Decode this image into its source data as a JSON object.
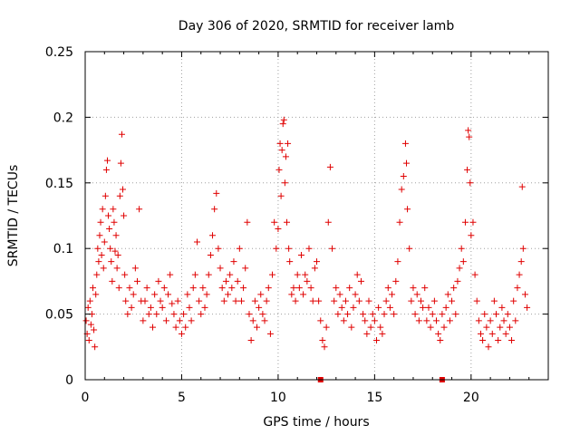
{
  "chart_data": {
    "type": "scatter",
    "title": "Day 306 of 2020, SRMTID for receiver lamb",
    "xlabel": "GPS time / hours",
    "ylabel": "SRMTID / TECUs",
    "xlim": [
      0,
      24
    ],
    "ylim": [
      0,
      0.25
    ],
    "x_ticks": [
      0,
      5,
      10,
      15,
      20
    ],
    "x_tick_labels": [
      "0",
      "5",
      "10",
      "15",
      "20"
    ],
    "y_ticks": [
      0,
      0.05,
      0.1,
      0.15,
      0.2,
      0.25
    ],
    "y_tick_labels": [
      "0",
      "0.05",
      "0.1",
      "0.15",
      "0.2",
      "0.25"
    ],
    "grid": true,
    "marker": "+",
    "color": "#e00000",
    "series": [
      {
        "name": "SRMTID",
        "points": [
          [
            0.05,
            0.045
          ],
          [
            0.1,
            0.035
          ],
          [
            0.15,
            0.055
          ],
          [
            0.2,
            0.03
          ],
          [
            0.25,
            0.06
          ],
          [
            0.3,
            0.042
          ],
          [
            0.35,
            0.05
          ],
          [
            0.4,
            0.07
          ],
          [
            0.45,
            0.038
          ],
          [
            0.5,
            0.025
          ],
          [
            0.55,
            0.065
          ],
          [
            0.6,
            0.08
          ],
          [
            0.65,
            0.1
          ],
          [
            0.7,
            0.09
          ],
          [
            0.75,
            0.11
          ],
          [
            0.8,
            0.12
          ],
          [
            0.85,
            0.095
          ],
          [
            0.9,
            0.13
          ],
          [
            0.95,
            0.085
          ],
          [
            1.0,
            0.105
          ],
          [
            1.05,
            0.14
          ],
          [
            1.1,
            0.16
          ],
          [
            1.15,
            0.167
          ],
          [
            1.2,
            0.125
          ],
          [
            1.25,
            0.115
          ],
          [
            1.3,
            0.1
          ],
          [
            1.35,
            0.09
          ],
          [
            1.4,
            0.075
          ],
          [
            1.45,
            0.13
          ],
          [
            1.5,
            0.12
          ],
          [
            1.55,
            0.098
          ],
          [
            1.6,
            0.11
          ],
          [
            1.65,
            0.085
          ],
          [
            1.7,
            0.095
          ],
          [
            1.75,
            0.07
          ],
          [
            1.8,
            0.14
          ],
          [
            1.85,
            0.165
          ],
          [
            1.9,
            0.187
          ],
          [
            1.95,
            0.145
          ],
          [
            2.0,
            0.125
          ],
          [
            2.05,
            0.08
          ],
          [
            2.1,
            0.06
          ],
          [
            2.2,
            0.05
          ],
          [
            2.3,
            0.07
          ],
          [
            2.4,
            0.055
          ],
          [
            2.5,
            0.065
          ],
          [
            2.6,
            0.085
          ],
          [
            2.7,
            0.075
          ],
          [
            2.8,
            0.13
          ],
          [
            2.9,
            0.06
          ],
          [
            3.0,
            0.045
          ],
          [
            3.1,
            0.06
          ],
          [
            3.2,
            0.07
          ],
          [
            3.3,
            0.05
          ],
          [
            3.4,
            0.055
          ],
          [
            3.5,
            0.04
          ],
          [
            3.6,
            0.065
          ],
          [
            3.7,
            0.05
          ],
          [
            3.8,
            0.075
          ],
          [
            3.9,
            0.06
          ],
          [
            4.0,
            0.055
          ],
          [
            4.1,
            0.07
          ],
          [
            4.2,
            0.045
          ],
          [
            4.3,
            0.065
          ],
          [
            4.4,
            0.08
          ],
          [
            4.5,
            0.058
          ],
          [
            4.6,
            0.05
          ],
          [
            4.7,
            0.04
          ],
          [
            4.8,
            0.06
          ],
          [
            4.9,
            0.045
          ],
          [
            5.0,
            0.035
          ],
          [
            5.1,
            0.05
          ],
          [
            5.2,
            0.04
          ],
          [
            5.3,
            0.065
          ],
          [
            5.4,
            0.055
          ],
          [
            5.5,
            0.045
          ],
          [
            5.6,
            0.07
          ],
          [
            5.7,
            0.08
          ],
          [
            5.8,
            0.105
          ],
          [
            5.9,
            0.06
          ],
          [
            6.0,
            0.05
          ],
          [
            6.1,
            0.07
          ],
          [
            6.2,
            0.055
          ],
          [
            6.3,
            0.065
          ],
          [
            6.4,
            0.08
          ],
          [
            6.5,
            0.095
          ],
          [
            6.6,
            0.11
          ],
          [
            6.7,
            0.13
          ],
          [
            6.8,
            0.142
          ],
          [
            6.9,
            0.1
          ],
          [
            7.0,
            0.085
          ],
          [
            7.1,
            0.07
          ],
          [
            7.2,
            0.06
          ],
          [
            7.3,
            0.075
          ],
          [
            7.4,
            0.065
          ],
          [
            7.5,
            0.08
          ],
          [
            7.6,
            0.07
          ],
          [
            7.7,
            0.09
          ],
          [
            7.8,
            0.06
          ],
          [
            7.9,
            0.075
          ],
          [
            8.0,
            0.1
          ],
          [
            8.1,
            0.06
          ],
          [
            8.2,
            0.07
          ],
          [
            8.3,
            0.085
          ],
          [
            8.4,
            0.12
          ],
          [
            8.5,
            0.05
          ],
          [
            8.6,
            0.03
          ],
          [
            8.7,
            0.045
          ],
          [
            8.8,
            0.06
          ],
          [
            8.9,
            0.04
          ],
          [
            9.0,
            0.055
          ],
          [
            9.1,
            0.065
          ],
          [
            9.2,
            0.05
          ],
          [
            9.3,
            0.045
          ],
          [
            9.4,
            0.06
          ],
          [
            9.5,
            0.07
          ],
          [
            9.6,
            0.035
          ],
          [
            9.7,
            0.08
          ],
          [
            9.8,
            0.12
          ],
          [
            9.9,
            0.1
          ],
          [
            10.0,
            0.115
          ],
          [
            10.05,
            0.16
          ],
          [
            10.1,
            0.18
          ],
          [
            10.15,
            0.14
          ],
          [
            10.2,
            0.175
          ],
          [
            10.25,
            0.195
          ],
          [
            10.3,
            0.198
          ],
          [
            10.35,
            0.15
          ],
          [
            10.4,
            0.17
          ],
          [
            10.45,
            0.12
          ],
          [
            10.5,
            0.18
          ],
          [
            10.55,
            0.1
          ],
          [
            10.6,
            0.09
          ],
          [
            10.7,
            0.065
          ],
          [
            10.8,
            0.07
          ],
          [
            10.9,
            0.06
          ],
          [
            11.0,
            0.08
          ],
          [
            11.1,
            0.07
          ],
          [
            11.2,
            0.095
          ],
          [
            11.3,
            0.065
          ],
          [
            11.4,
            0.08
          ],
          [
            11.5,
            0.075
          ],
          [
            11.6,
            0.1
          ],
          [
            11.7,
            0.07
          ],
          [
            11.8,
            0.06
          ],
          [
            11.9,
            0.085
          ],
          [
            12.0,
            0.09
          ],
          [
            12.1,
            0.06
          ],
          [
            12.2,
            0.045
          ],
          [
            12.3,
            0.03
          ],
          [
            12.4,
            0.025
          ],
          [
            12.5,
            0.04
          ],
          [
            12.6,
            0.12
          ],
          [
            12.7,
            0.162
          ],
          [
            12.8,
            0.1
          ],
          [
            12.9,
            0.06
          ],
          [
            13.0,
            0.07
          ],
          [
            13.1,
            0.05
          ],
          [
            13.2,
            0.065
          ],
          [
            13.3,
            0.055
          ],
          [
            13.4,
            0.045
          ],
          [
            13.5,
            0.06
          ],
          [
            13.6,
            0.05
          ],
          [
            13.7,
            0.07
          ],
          [
            13.8,
            0.04
          ],
          [
            13.9,
            0.055
          ],
          [
            14.0,
            0.065
          ],
          [
            14.1,
            0.08
          ],
          [
            14.2,
            0.06
          ],
          [
            14.3,
            0.075
          ],
          [
            14.4,
            0.05
          ],
          [
            14.5,
            0.045
          ],
          [
            14.6,
            0.035
          ],
          [
            14.7,
            0.06
          ],
          [
            14.8,
            0.04
          ],
          [
            14.9,
            0.05
          ],
          [
            15.0,
            0.045
          ],
          [
            15.1,
            0.03
          ],
          [
            15.2,
            0.055
          ],
          [
            15.3,
            0.04
          ],
          [
            15.4,
            0.035
          ],
          [
            15.5,
            0.05
          ],
          [
            15.6,
            0.06
          ],
          [
            15.7,
            0.07
          ],
          [
            15.8,
            0.055
          ],
          [
            15.9,
            0.065
          ],
          [
            16.0,
            0.05
          ],
          [
            16.1,
            0.075
          ],
          [
            16.2,
            0.09
          ],
          [
            16.3,
            0.12
          ],
          [
            16.4,
            0.145
          ],
          [
            16.5,
            0.155
          ],
          [
            16.6,
            0.18
          ],
          [
            16.65,
            0.165
          ],
          [
            16.7,
            0.13
          ],
          [
            16.8,
            0.1
          ],
          [
            16.9,
            0.06
          ],
          [
            17.0,
            0.07
          ],
          [
            17.1,
            0.05
          ],
          [
            17.2,
            0.065
          ],
          [
            17.3,
            0.045
          ],
          [
            17.4,
            0.06
          ],
          [
            17.5,
            0.055
          ],
          [
            17.6,
            0.07
          ],
          [
            17.7,
            0.045
          ],
          [
            17.8,
            0.055
          ],
          [
            17.9,
            0.04
          ],
          [
            18.0,
            0.05
          ],
          [
            18.1,
            0.06
          ],
          [
            18.2,
            0.045
          ],
          [
            18.3,
            0.035
          ],
          [
            18.4,
            0.03
          ],
          [
            18.5,
            0.05
          ],
          [
            18.6,
            0.04
          ],
          [
            18.7,
            0.055
          ],
          [
            18.8,
            0.065
          ],
          [
            18.9,
            0.045
          ],
          [
            19.0,
            0.06
          ],
          [
            19.1,
            0.07
          ],
          [
            19.2,
            0.05
          ],
          [
            19.3,
            0.075
          ],
          [
            19.4,
            0.085
          ],
          [
            19.5,
            0.1
          ],
          [
            19.6,
            0.09
          ],
          [
            19.7,
            0.12
          ],
          [
            19.8,
            0.16
          ],
          [
            19.85,
            0.19
          ],
          [
            19.9,
            0.185
          ],
          [
            19.95,
            0.15
          ],
          [
            20.0,
            0.11
          ],
          [
            20.1,
            0.12
          ],
          [
            20.2,
            0.08
          ],
          [
            20.3,
            0.06
          ],
          [
            20.4,
            0.045
          ],
          [
            20.5,
            0.035
          ],
          [
            20.6,
            0.03
          ],
          [
            20.7,
            0.05
          ],
          [
            20.8,
            0.04
          ],
          [
            20.9,
            0.025
          ],
          [
            21.0,
            0.045
          ],
          [
            21.1,
            0.035
          ],
          [
            21.2,
            0.06
          ],
          [
            21.3,
            0.05
          ],
          [
            21.4,
            0.03
          ],
          [
            21.5,
            0.04
          ],
          [
            21.6,
            0.055
          ],
          [
            21.7,
            0.045
          ],
          [
            21.8,
            0.035
          ],
          [
            21.9,
            0.05
          ],
          [
            22.0,
            0.04
          ],
          [
            22.1,
            0.03
          ],
          [
            22.2,
            0.06
          ],
          [
            22.3,
            0.045
          ],
          [
            22.4,
            0.07
          ],
          [
            22.5,
            0.08
          ],
          [
            22.6,
            0.09
          ],
          [
            22.65,
            0.147
          ],
          [
            22.7,
            0.1
          ],
          [
            22.8,
            0.065
          ],
          [
            22.9,
            0.055
          ]
        ]
      }
    ],
    "axis_markers": [
      {
        "x": 12.2,
        "y": 0
      },
      {
        "x": 18.5,
        "y": 0
      }
    ]
  }
}
